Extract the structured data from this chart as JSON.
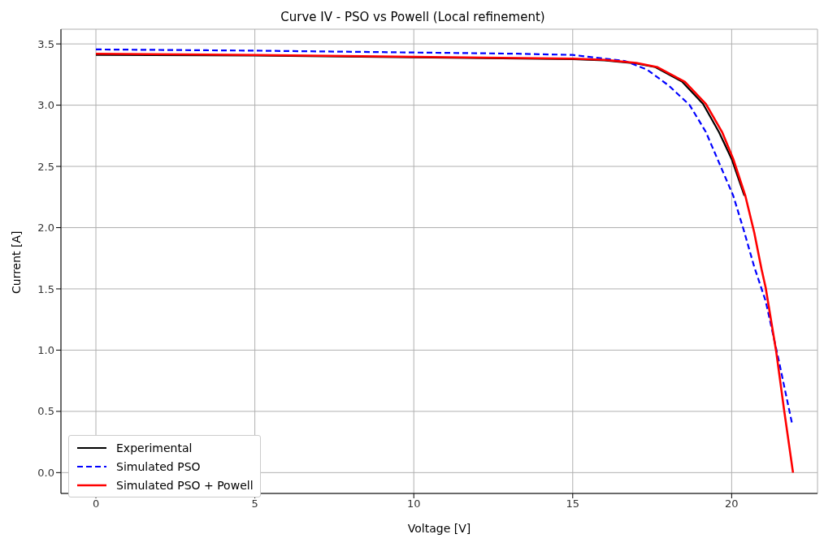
{
  "chart_data": {
    "type": "line",
    "title": "Curve IV - PSO vs Powell (Local refinement)",
    "xlabel": "Voltage [V]",
    "ylabel": "Current [A]",
    "xlim": [
      -1.1,
      22.7
    ],
    "xticks": [
      0,
      5,
      10,
      15,
      20
    ],
    "ylim": [
      -0.17,
      3.62
    ],
    "yticks": [
      {
        "value": 0,
        "label": "0.0"
      },
      {
        "value": 0.5,
        "label": "0.5"
      },
      {
        "value": 1,
        "label": "1.0"
      },
      {
        "value": 1.5,
        "label": "1.5"
      },
      {
        "value": 2,
        "label": "2.0"
      },
      {
        "value": 2.5,
        "label": "2.5"
      },
      {
        "value": 3,
        "label": "3.0"
      },
      {
        "value": 3.5,
        "label": "3.5"
      }
    ],
    "grid": true,
    "legend": "bottom left",
    "marker": "none",
    "series": [
      {
        "name": "Experimental",
        "color": "#000000",
        "line_style": "solid",
        "x": [
          0,
          5,
          10,
          15,
          16,
          17,
          17.6,
          18.45,
          19.1,
          19.6,
          20.0,
          20.4
        ],
        "values": [
          3.41,
          3.405,
          3.39,
          3.375,
          3.365,
          3.34,
          3.31,
          3.19,
          3.01,
          2.78,
          2.56,
          2.26
        ]
      },
      {
        "name": "Simulated PSO",
        "color": "#0000ff",
        "line_style": "dashed",
        "x": [
          0,
          5,
          10,
          13.27,
          15,
          16.65,
          17.34,
          18.02,
          18.68,
          19.19,
          19.62,
          20.05,
          20.38,
          20.71,
          21.07,
          21.47,
          21.9
        ],
        "values": [
          3.455,
          3.445,
          3.43,
          3.42,
          3.41,
          3.36,
          3.29,
          3.16,
          3.0,
          2.78,
          2.52,
          2.26,
          1.98,
          1.68,
          1.4,
          0.93,
          0.4
        ]
      },
      {
        "name": "Simulated PSO + Powell",
        "color": "#ff0000",
        "line_style": "solid",
        "x": [
          0,
          5,
          10,
          15,
          16,
          17,
          17.67,
          18.53,
          19.19,
          19.7,
          20.05,
          20.43,
          20.71,
          20.94,
          21.07,
          21.4,
          21.65,
          21.93
        ],
        "values": [
          3.42,
          3.41,
          3.395,
          3.38,
          3.37,
          3.345,
          3.31,
          3.19,
          3.01,
          2.78,
          2.56,
          2.26,
          1.96,
          1.66,
          1.51,
          0.99,
          0.51,
          0.0
        ]
      }
    ]
  }
}
